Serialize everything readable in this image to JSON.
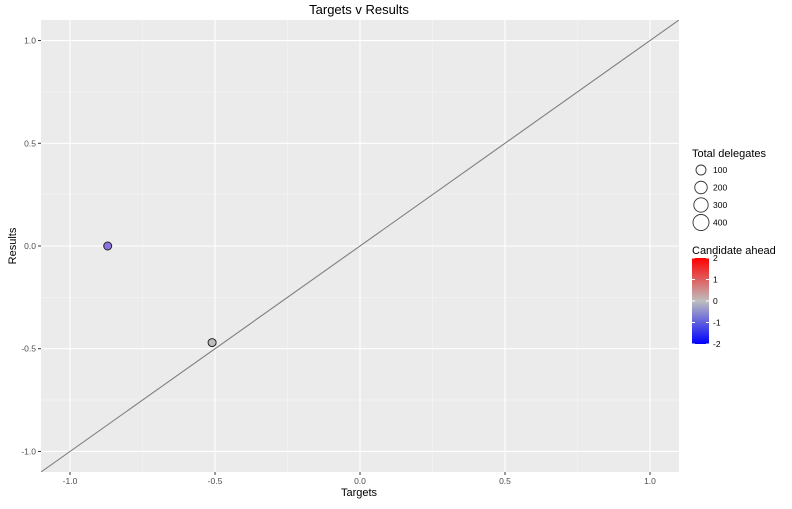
{
  "chart_data": {
    "type": "scatter",
    "title": "Targets v Results",
    "xlabel": "Targets",
    "ylabel": "Results",
    "xlim": [
      -1.1,
      1.1
    ],
    "ylim": [
      -1.1,
      1.1
    ],
    "x_ticks": [
      -1.0,
      -0.5,
      0.0,
      0.5,
      1.0
    ],
    "x_tick_labels": [
      "-1.0",
      "-0.5",
      "0.0",
      "0.5",
      "1.0"
    ],
    "y_ticks": [
      -1.0,
      -0.5,
      0.0,
      0.5,
      1.0
    ],
    "y_tick_labels": [
      "-1.0",
      "-0.5",
      "0.0",
      "0.5",
      "1.0"
    ],
    "grid": true,
    "background": "#EBEBEB",
    "reference_line": {
      "type": "identity",
      "slope": 1,
      "intercept": 0,
      "color": "#7F7F7F"
    },
    "points": [
      {
        "x": -0.87,
        "y": 0.0,
        "size_value": 100,
        "color_value": -1.2,
        "color": "#8B74E0"
      },
      {
        "x": -0.51,
        "y": -0.47,
        "size_value": 100,
        "color_value": 0.0,
        "color": "#BEBEBE"
      }
    ],
    "legend": {
      "placement": "right",
      "size": {
        "title": "Total delegates",
        "values": [
          100,
          200,
          300,
          400
        ],
        "labels": [
          "100",
          "200",
          "300",
          "400"
        ]
      },
      "color": {
        "title": "Candidate ahead",
        "min": -2,
        "max": 2,
        "ticks": [
          2,
          1,
          0,
          -1,
          -2
        ],
        "tick_labels": [
          "2",
          "1",
          "0",
          "-1",
          "-2"
        ],
        "low_color": "#0000FF",
        "mid_color": "#BEBEBE",
        "high_color": "#FF0000"
      }
    }
  }
}
